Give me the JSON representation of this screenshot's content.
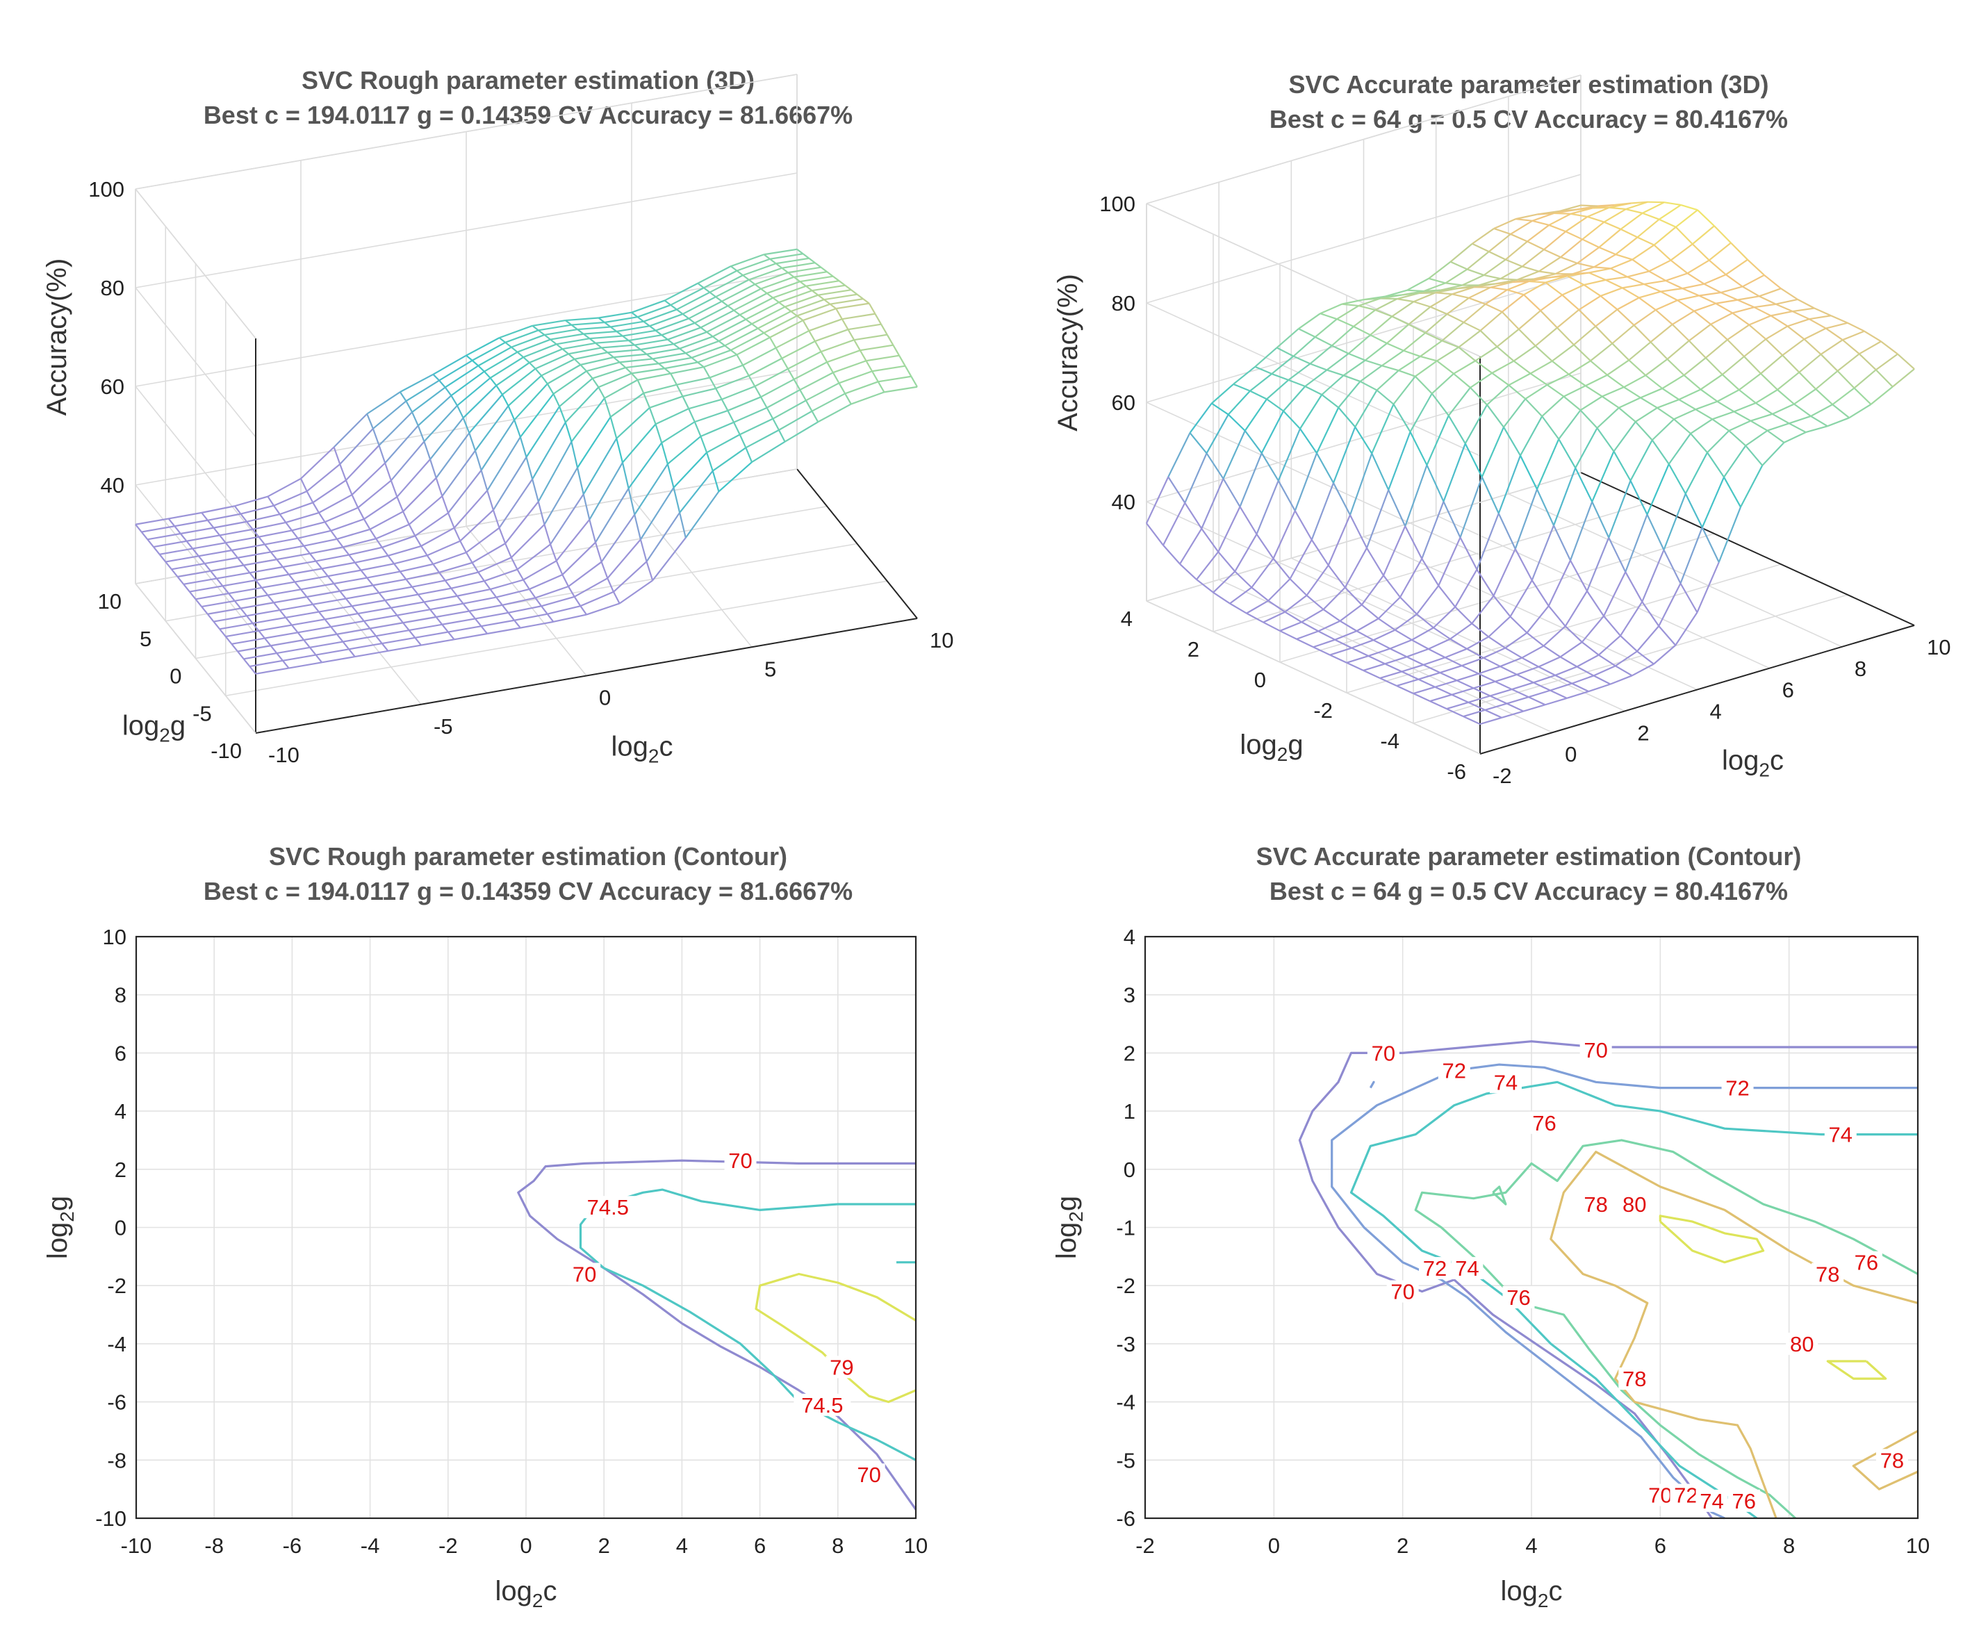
{
  "colors": {
    "c68": "#8f8ad0",
    "c70": "#8f8ad0",
    "c72": "#7f9fd8",
    "c74": "#4fc7c4",
    "c74_5": "#4fc7c4",
    "c76": "#7ad5a8",
    "c78": "#dfc070",
    "c79": "#dde45a",
    "c80": "#dde45a",
    "label": "#e01010"
  },
  "chart_data": [
    {
      "id": "rough3d",
      "type": "surface3d",
      "title": "SVC Rough parameter estimation (3D)",
      "subtitle": "Best c = 194.0117 g = 0.14359 CV Accuracy = 81.6667%",
      "xlabel": "log2c",
      "ylabel": "log2g",
      "zlabel": "Accuracy(%)",
      "xlim": [
        -10,
        10
      ],
      "ylim": [
        -10,
        10
      ],
      "zlim": [
        20,
        100
      ],
      "xticks": [
        "-10",
        "-5",
        "0",
        "5",
        "10"
      ],
      "yticks": [
        "-10",
        "-5",
        "0",
        "5",
        "10"
      ],
      "zticks": [
        "40",
        "60",
        "80",
        "100"
      ],
      "grid": "on"
    },
    {
      "id": "acc3d",
      "type": "surface3d",
      "title": "SVC Accurate parameter estimation (3D)",
      "subtitle": "Best c = 64 g = 0.5 CV Accuracy = 80.4167%",
      "xlabel": "log2c",
      "ylabel": "log2g",
      "zlabel": "Accuracy(%)",
      "xlim": [
        -2,
        10
      ],
      "ylim": [
        -6,
        4
      ],
      "zlim": [
        20,
        100
      ],
      "xticks": [
        "-2",
        "0",
        "2",
        "4",
        "6",
        "8",
        "10"
      ],
      "yticks": [
        "-6",
        "-4",
        "-2",
        "0",
        "2",
        "4"
      ],
      "zticks": [
        "40",
        "60",
        "80",
        "100"
      ],
      "grid": "on"
    },
    {
      "id": "roughContour",
      "type": "contour",
      "title": "SVC Rough parameter estimation (Contour)",
      "subtitle": "Best c = 194.0117 g = 0.14359 CV Accuracy = 81.6667%",
      "xlabel": "log2c",
      "ylabel": "log2g",
      "xlim": [
        -10,
        10
      ],
      "ylim": [
        -10,
        10
      ],
      "xticks": [
        "-10",
        "-8",
        "-6",
        "-4",
        "-2",
        "0",
        "2",
        "4",
        "6",
        "8",
        "10"
      ],
      "yticks": [
        "-10",
        "-8",
        "-6",
        "-4",
        "-2",
        "0",
        "2",
        "4",
        "6",
        "8",
        "10"
      ],
      "grid": "on",
      "lines": [
        {
          "level": "70",
          "color": "c70",
          "points": [
            [
              10,
              2.2
            ],
            [
              7,
              2.2
            ],
            [
              4,
              2.3
            ],
            [
              1.5,
              2.2
            ],
            [
              0.5,
              2.1
            ],
            [
              0.2,
              1.6
            ],
            [
              -0.2,
              1.2
            ],
            [
              0.1,
              0.4
            ],
            [
              0.8,
              -0.4
            ],
            [
              2,
              -1.4
            ],
            [
              3,
              -2.3
            ],
            [
              4,
              -3.3
            ],
            [
              5,
              -4.1
            ],
            [
              6,
              -4.8
            ],
            [
              7,
              -5.6
            ],
            [
              8,
              -6.5
            ],
            [
              9,
              -7.8
            ],
            [
              10,
              -9.7
            ]
          ]
        },
        {
          "level": "74.5",
          "color": "c74_5",
          "points": [
            [
              10,
              0.8
            ],
            [
              8,
              0.8
            ],
            [
              6,
              0.6
            ],
            [
              4.5,
              0.9
            ],
            [
              3.5,
              1.3
            ],
            [
              3,
              1.2
            ],
            [
              2.5,
              1
            ],
            [
              1.8,
              0.8
            ],
            [
              1.4,
              0.1
            ],
            [
              1.4,
              -0.7
            ],
            [
              2,
              -1.4
            ],
            [
              3,
              -2
            ],
            [
              4.2,
              -2.9
            ],
            [
              5.5,
              -4
            ],
            [
              6.3,
              -5
            ],
            [
              7,
              -6
            ],
            [
              8,
              -6.7
            ],
            [
              9,
              -7.3
            ],
            [
              10,
              -8
            ]
          ]
        },
        {
          "level": "79",
          "color": "c79",
          "points": [
            [
              10,
              -3.2
            ],
            [
              9,
              -2.4
            ],
            [
              8,
              -1.9
            ],
            [
              7,
              -1.6
            ],
            [
              6.5,
              -1.8
            ],
            [
              6,
              -2
            ],
            [
              5.9,
              -2.8
            ],
            [
              6.6,
              -3.4
            ],
            [
              7.6,
              -4.3
            ],
            [
              8.2,
              -5.1
            ],
            [
              8.8,
              -5.8
            ],
            [
              9.3,
              -6
            ],
            [
              10,
              -5.6
            ]
          ]
        },
        {
          "level": "",
          "color": "c74_5",
          "points": [
            [
              9.5,
              -1.2
            ],
            [
              10,
              -1.2
            ]
          ]
        }
      ],
      "labels": [
        {
          "text": "70",
          "x": 5.5,
          "y": 2.3
        },
        {
          "text": "74.5",
          "x": 2.1,
          "y": 0.7
        },
        {
          "text": "70",
          "x": 1.5,
          "y": -1.6
        },
        {
          "text": "79",
          "x": 8.1,
          "y": -4.8
        },
        {
          "text": "74.5",
          "x": 7.6,
          "y": -6.1
        },
        {
          "text": "70",
          "x": 8.8,
          "y": -8.5
        }
      ]
    },
    {
      "id": "accContour",
      "type": "contour",
      "title": "SVC Accurate parameter estimation (Contour)",
      "subtitle": "Best c = 64 g = 0.5 CV Accuracy = 80.4167%",
      "xlabel": "log2c",
      "ylabel": "log2g",
      "xlim": [
        -2,
        10
      ],
      "ylim": [
        -6,
        4
      ],
      "xticks": [
        "-2",
        "0",
        "2",
        "4",
        "6",
        "8",
        "10"
      ],
      "yticks": [
        "-6",
        "-5",
        "-4",
        "-3",
        "-2",
        "-1",
        "0",
        "1",
        "2",
        "3",
        "4"
      ],
      "grid": "on",
      "lines": [
        {
          "level": "70",
          "color": "c70",
          "points": [
            [
              10,
              2.1
            ],
            [
              7,
              2.1
            ],
            [
              5,
              2.1
            ],
            [
              4,
              2.2
            ],
            [
              3,
              2.1
            ],
            [
              2,
              2.0
            ],
            [
              1.2,
              2.0
            ],
            [
              1.0,
              1.5
            ],
            [
              0.6,
              1.0
            ],
            [
              0.4,
              0.5
            ],
            [
              0.6,
              -0.2
            ],
            [
              1.0,
              -1
            ],
            [
              1.6,
              -1.8
            ],
            [
              2.3,
              -2.1
            ],
            [
              2.8,
              -1.9
            ],
            [
              3.4,
              -2.5
            ],
            [
              4.2,
              -3.1
            ],
            [
              5,
              -3.7
            ],
            [
              5.6,
              -4.2
            ],
            [
              6.1,
              -4.9
            ],
            [
              6.5,
              -5.5
            ],
            [
              6.8,
              -6
            ]
          ]
        },
        {
          "level": "72",
          "color": "c72",
          "points": [
            [
              10,
              1.4
            ],
            [
              8,
              1.4
            ],
            [
              6,
              1.4
            ],
            [
              5,
              1.5
            ],
            [
              4.2,
              1.75
            ],
            [
              3.5,
              1.8
            ],
            [
              2.8,
              1.7
            ],
            [
              2.2,
              1.4
            ],
            [
              1.6,
              1.1
            ],
            [
              0.9,
              0.5
            ],
            [
              0.9,
              -0.3
            ],
            [
              1.4,
              -1
            ],
            [
              2,
              -1.6
            ],
            [
              2.6,
              -1.9
            ],
            [
              3,
              -2.2
            ],
            [
              3.6,
              -2.8
            ],
            [
              4.3,
              -3.4
            ],
            [
              5,
              -4
            ],
            [
              5.7,
              -4.6
            ],
            [
              6.2,
              -5.3
            ],
            [
              6.8,
              -5.9
            ],
            [
              7,
              -6
            ]
          ]
        },
        {
          "level": "74",
          "color": "c74",
          "points": [
            [
              10,
              0.6
            ],
            [
              8.5,
              0.6
            ],
            [
              7,
              0.7
            ],
            [
              6,
              1.0
            ],
            [
              5.3,
              1.1
            ],
            [
              4.4,
              1.5
            ],
            [
              3.3,
              1.3
            ],
            [
              2.8,
              1.1
            ],
            [
              2.2,
              0.6
            ],
            [
              1.5,
              0.4
            ],
            [
              1.2,
              -0.4
            ],
            [
              1.7,
              -0.8
            ],
            [
              2.3,
              -1.4
            ],
            [
              3,
              -1.7
            ],
            [
              3.6,
              -2.2
            ],
            [
              4.3,
              -3
            ],
            [
              5,
              -3.6
            ],
            [
              5.7,
              -4.4
            ],
            [
              6.3,
              -5.1
            ],
            [
              7,
              -5.6
            ],
            [
              7.5,
              -6
            ]
          ]
        },
        {
          "level": "76",
          "color": "c76",
          "points": [
            [
              10,
              -1.8
            ],
            [
              9.5,
              -1.5
            ],
            [
              9,
              -1.2
            ],
            [
              8.4,
              -0.9
            ],
            [
              7.6,
              -0.6
            ],
            [
              6.8,
              -0.1
            ],
            [
              6.2,
              0.3
            ],
            [
              5.4,
              0.5
            ],
            [
              4.8,
              0.4
            ],
            [
              4.4,
              -0.2
            ],
            [
              4,
              0.1
            ],
            [
              3.6,
              -0.4
            ],
            [
              3.1,
              -0.5
            ],
            [
              2.3,
              -0.4
            ],
            [
              2.2,
              -0.7
            ],
            [
              2.6,
              -1
            ],
            [
              3.2,
              -1.6
            ],
            [
              3.8,
              -2.3
            ],
            [
              4.5,
              -2.5
            ],
            [
              4.9,
              -3.1
            ],
            [
              5.4,
              -3.8
            ],
            [
              6,
              -4.4
            ],
            [
              6.6,
              -4.9
            ],
            [
              7.2,
              -5.3
            ],
            [
              7.7,
              -5.6
            ],
            [
              8.1,
              -6
            ]
          ]
        },
        {
          "level": "78",
          "color": "c78",
          "points": [
            [
              10,
              -2.3
            ],
            [
              9,
              -2
            ],
            [
              8,
              -1.4
            ],
            [
              7,
              -0.7
            ],
            [
              6,
              -0.3
            ],
            [
              5,
              0.3
            ],
            [
              4.5,
              -0.4
            ],
            [
              4.3,
              -1.2
            ],
            [
              4.8,
              -1.8
            ],
            [
              5.3,
              -2
            ],
            [
              5.8,
              -2.3
            ],
            [
              5.6,
              -2.9
            ],
            [
              5.3,
              -3.6
            ],
            [
              5.6,
              -4
            ],
            [
              6.6,
              -4.3
            ],
            [
              7.2,
              -4.4
            ],
            [
              7.4,
              -4.8
            ],
            [
              7.6,
              -5.4
            ],
            [
              7.8,
              -6
            ]
          ]
        },
        {
          "level": "80",
          "color": "c80",
          "points": [
            [
              6,
              -0.9
            ],
            [
              6.5,
              -1.4
            ],
            [
              7,
              -1.6
            ],
            [
              7.6,
              -1.4
            ],
            [
              7.5,
              -1.2
            ],
            [
              7,
              -1.1
            ],
            [
              6.5,
              -0.9
            ],
            [
              6,
              -0.8
            ],
            [
              6,
              -0.9
            ]
          ]
        },
        {
          "level": "80",
          "color": "c80",
          "points": [
            [
              9.2,
              -3.3
            ],
            [
              9.5,
              -3.6
            ],
            [
              9,
              -3.6
            ],
            [
              8.6,
              -3.3
            ],
            [
              9.2,
              -3.3
            ]
          ]
        },
        {
          "level": "78",
          "color": "c78",
          "points": [
            [
              10,
              -5.2
            ],
            [
              9.4,
              -5.5
            ],
            [
              9,
              -5.1
            ],
            [
              10,
              -4.5
            ]
          ]
        },
        {
          "level": "",
          "color": "c76",
          "points": [
            [
              3.4,
              -0.4
            ],
            [
              3.6,
              -0.6
            ],
            [
              3.5,
              -0.3
            ],
            [
              3.4,
              -0.4
            ]
          ]
        },
        {
          "level": "",
          "color": "c72",
          "points": [
            [
              1.5,
              1.4
            ],
            [
              1.55,
              1.5
            ],
            [
              1.5,
              1.4
            ]
          ]
        }
      ],
      "labels": [
        {
          "text": "70",
          "x": 1.7,
          "y": 2.0
        },
        {
          "text": "70",
          "x": 5,
          "y": 2.05
        },
        {
          "text": "72",
          "x": 2.8,
          "y": 1.7
        },
        {
          "text": "72",
          "x": 7.2,
          "y": 1.4
        },
        {
          "text": "74",
          "x": 3.6,
          "y": 1.5
        },
        {
          "text": "74",
          "x": 8.8,
          "y": 0.6
        },
        {
          "text": "76",
          "x": 4.2,
          "y": 0.8
        },
        {
          "text": "76",
          "x": 9.2,
          "y": -1.6
        },
        {
          "text": "78",
          "x": 5,
          "y": -0.6
        },
        {
          "text": "78",
          "x": 8.6,
          "y": -1.8
        },
        {
          "text": "78",
          "x": 5.6,
          "y": -3.6
        },
        {
          "text": "78",
          "x": 9.6,
          "y": -5
        },
        {
          "text": "80",
          "x": 5.6,
          "y": -0.6
        },
        {
          "text": "80",
          "x": 8.2,
          "y": -3
        },
        {
          "text": "70",
          "x": 2,
          "y": -2.1
        },
        {
          "text": "72",
          "x": 2.5,
          "y": -1.7
        },
        {
          "text": "74",
          "x": 3,
          "y": -1.7
        },
        {
          "text": "76",
          "x": 3.8,
          "y": -2.2
        },
        {
          "text": "70",
          "x": 6,
          "y": -5.6
        },
        {
          "text": "72",
          "x": 6.4,
          "y": -5.6
        },
        {
          "text": "74",
          "x": 6.8,
          "y": -5.7
        },
        {
          "text": "76",
          "x": 7.3,
          "y": -5.7
        }
      ]
    }
  ]
}
